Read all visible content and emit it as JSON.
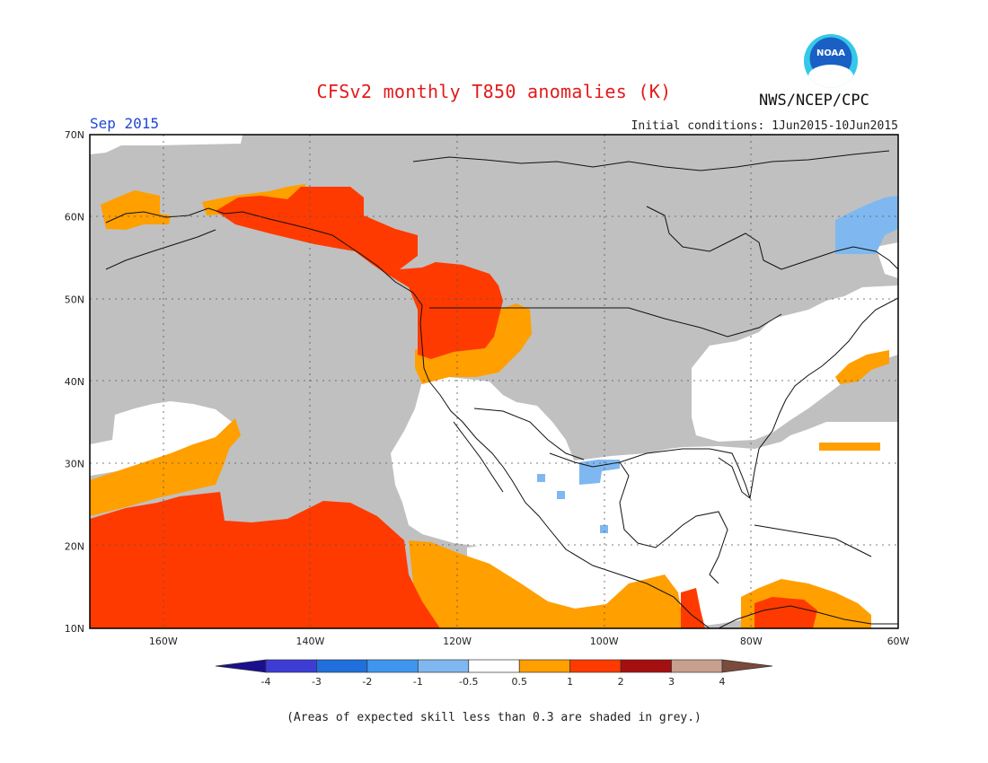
{
  "header": {
    "title": "CFSv2 monthly T850 anomalies (K)",
    "valid_month": "Sep 2015",
    "agency": "NWS/NCEP/CPC",
    "initial_conditions": "Initial conditions: 1Jun2015-10Jun2015",
    "logo_text": "NOAA"
  },
  "footnote": "(Areas of expected skill less than 0.3 are shaded in grey.)",
  "map": {
    "lat_labels": [
      "70N",
      "60N",
      "50N",
      "40N",
      "30N",
      "20N",
      "10N"
    ],
    "lon_labels": [
      "160W",
      "140W",
      "120W",
      "100W",
      "80W",
      "60W"
    ],
    "extent": {
      "lon": [
        -170,
        -60
      ],
      "lat": [
        10,
        70
      ]
    },
    "grid": true,
    "low_skill_color": "#c0c0c0"
  },
  "legend": {
    "tick_labels": [
      "-4",
      "-3",
      "-2",
      "-1",
      "-0.5",
      "0.5",
      "1",
      "2",
      "3",
      "4"
    ],
    "colors": [
      "#1a0f8f",
      "#3d3dd6",
      "#1f6fdc",
      "#3f96f0",
      "#7fb8f0",
      "#ffffff",
      "#ff9f00",
      "#ff3a00",
      "#a50f0f",
      "#c8a090",
      "#7a4a3a"
    ]
  },
  "colors": {
    "title": "#e31a1c",
    "valid": "#1f47d6",
    "grey": "#c0c0c0",
    "orange": "#ff9f00",
    "red": "#ff3a00",
    "light_blue": "#7fb8f0",
    "blue": "#5aa0ec"
  }
}
